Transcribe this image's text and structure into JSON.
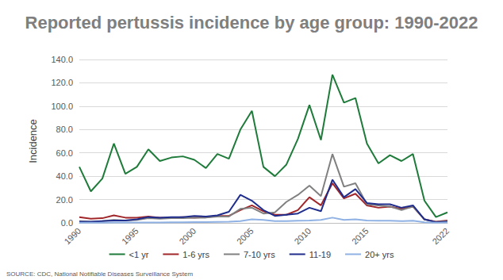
{
  "chart_data": {
    "type": "line",
    "title": "Reported pertussis incidence by age group: 1990-2022",
    "y_label": "Incidence",
    "annotations": [
      "SOURCE: CDC, National Notifiable Diseases Surveillance System"
    ],
    "categories": [
      "1990",
      null,
      null,
      null,
      null,
      "1995",
      null,
      null,
      null,
      null,
      "2000",
      null,
      null,
      null,
      null,
      "2005",
      null,
      null,
      null,
      null,
      "2010",
      null,
      null,
      null,
      null,
      "2015",
      null,
      null,
      null,
      null,
      null,
      null,
      "2022"
    ],
    "series": [
      {
        "name": "<1 yr",
        "color": "#1e7b3a",
        "values": [
          48,
          27,
          38,
          68,
          42,
          48,
          63,
          53,
          56,
          57,
          54,
          47,
          59,
          55,
          80,
          96,
          48,
          40,
          50,
          72,
          101,
          71,
          127,
          103,
          107,
          68,
          51,
          58,
          53,
          59,
          19,
          5,
          9
        ]
      },
      {
        "name": "1-6 yrs",
        "color": "#a0262a",
        "values": [
          5,
          3.5,
          4,
          6.5,
          4.5,
          4.5,
          5.5,
          4.5,
          4.5,
          5,
          4.5,
          5,
          6,
          6,
          11,
          15,
          10,
          7,
          7,
          11,
          22,
          15,
          34,
          21,
          25,
          15,
          13,
          14,
          12,
          14,
          3,
          1,
          2
        ]
      },
      {
        "name": "7-10 yrs",
        "color": "#808080",
        "values": [
          1.5,
          1,
          1.5,
          2.5,
          2,
          2.5,
          4,
          3.5,
          4,
          4,
          4.5,
          4.5,
          5.5,
          5.5,
          12,
          13,
          8,
          9,
          18,
          24,
          32,
          23,
          59,
          31,
          34,
          16,
          15,
          14,
          11,
          14,
          3,
          0.7,
          1.5
        ]
      },
      {
        "name": "11-19",
        "color": "#1f2d8c",
        "values": [
          1,
          1,
          1.5,
          2,
          2,
          3,
          5,
          4.5,
          5,
          5,
          6,
          5.5,
          6.5,
          9.5,
          24,
          19,
          11,
          6,
          7,
          8,
          13,
          10,
          37,
          22,
          29,
          17,
          16,
          16,
          13,
          15,
          3,
          0.6,
          1
        ]
      },
      {
        "name": "20+ yrs",
        "color": "#8fb1e3",
        "values": [
          0.2,
          0.2,
          0.2,
          0.3,
          0.3,
          0.3,
          0.4,
          0.4,
          0.5,
          0.5,
          0.6,
          0.7,
          0.9,
          1,
          1.5,
          3,
          2.5,
          1.5,
          1.5,
          1.8,
          2,
          2.5,
          4.5,
          2.5,
          3,
          2,
          1.8,
          1.8,
          1.5,
          1.8,
          0.5,
          0.2,
          0.3
        ]
      }
    ],
    "ylim": [
      0,
      140
    ],
    "yticks": [
      {
        "value": 0,
        "label": "0.0"
      },
      {
        "value": 20,
        "label": "20.0"
      },
      {
        "value": 40,
        "label": "40.0"
      },
      {
        "value": 60,
        "label": "60.0"
      },
      {
        "value": 80,
        "label": "80.0"
      },
      {
        "value": 100,
        "label": "100.0"
      },
      {
        "value": 120,
        "label": "120.0"
      },
      {
        "value": 140,
        "label": "140.0"
      }
    ],
    "grid": true,
    "legend": "bottom"
  }
}
